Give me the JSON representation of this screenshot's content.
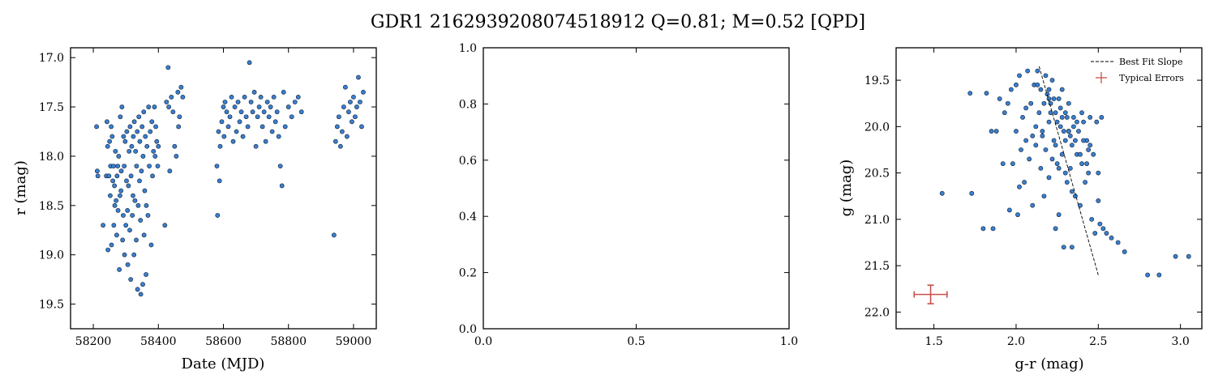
{
  "figure": {
    "title": "GDR1 2162939208074518912  Q=0.81; M=0.52 [QPD]"
  },
  "colors": {
    "point_fill": "#3a7fcf",
    "point_edge": "#0f1e33",
    "errorbar": "#c8504b",
    "fit_line": "#000000"
  },
  "chart_data": [
    {
      "type": "scatter",
      "name": "lightcurve",
      "xlabel": "Date (MJD)",
      "ylabel": "r (mag)",
      "xlim": [
        58130,
        59070
      ],
      "ylim": [
        19.75,
        16.9
      ],
      "y_inverted": true,
      "xticks": [
        58200,
        58400,
        58600,
        58800,
        59000
      ],
      "xtick_labels": [
        "58200",
        "58400",
        "58600",
        "58800",
        "59000"
      ],
      "yticks": [
        17.0,
        17.5,
        18.0,
        18.5,
        19.0,
        19.5
      ],
      "ytick_labels": [
        "17.0",
        "17.5",
        "18.0",
        "18.5",
        "19.0",
        "19.5"
      ],
      "x": [
        58210,
        58212,
        58214,
        58230,
        58240,
        58242,
        58244,
        58245,
        58248,
        58250,
        58252,
        58253,
        58255,
        58256,
        58258,
        58260,
        58262,
        58263,
        58265,
        58266,
        58268,
        58270,
        58272,
        58273,
        58275,
        58276,
        58278,
        58280,
        58282,
        58283,
        58285,
        58286,
        58288,
        58290,
        58292,
        58293,
        58295,
        58296,
        58298,
        58300,
        58302,
        58303,
        58305,
        58306,
        58308,
        58310,
        58312,
        58313,
        58315,
        58316,
        58318,
        58320,
        58322,
        58323,
        58325,
        58326,
        58328,
        58330,
        58332,
        58333,
        58335,
        58336,
        58338,
        58340,
        58342,
        58343,
        58345,
        58346,
        58348,
        58350,
        58352,
        58353,
        58355,
        58356,
        58358,
        58360,
        58362,
        58363,
        58365,
        58368,
        58370,
        58372,
        58375,
        58378,
        58380,
        58382,
        58385,
        58388,
        58390,
        58392,
        58395,
        58398,
        58400,
        58420,
        58425,
        58430,
        58432,
        58435,
        58440,
        58445,
        58450,
        58455,
        58460,
        58462,
        58465,
        58470,
        58475,
        58580,
        58582,
        58585,
        58588,
        58590,
        58595,
        58600,
        58602,
        58605,
        58610,
        58615,
        58620,
        58625,
        58630,
        58635,
        58640,
        58645,
        58650,
        58655,
        58660,
        58665,
        58670,
        58675,
        58680,
        58685,
        58690,
        58695,
        58700,
        58705,
        58710,
        58715,
        58720,
        58725,
        58730,
        58735,
        58740,
        58745,
        58750,
        58755,
        58760,
        58765,
        58770,
        58775,
        58780,
        58785,
        58790,
        58800,
        58810,
        58820,
        58830,
        58840,
        58940,
        58945,
        58950,
        58955,
        58960,
        58965,
        58970,
        58975,
        58980,
        58985,
        58990,
        58995,
        59000,
        59005,
        59010,
        59015,
        59020,
        59025,
        59030
      ],
      "y": [
        17.7,
        18.15,
        18.2,
        18.7,
        18.2,
        17.65,
        17.9,
        18.95,
        18.2,
        17.85,
        18.4,
        18.1,
        17.7,
        18.9,
        17.8,
        18.25,
        18.1,
        18.7,
        18.3,
        18.5,
        17.95,
        18.45,
        18.8,
        18.2,
        18.1,
        18.55,
        18.0,
        19.15,
        18.4,
        17.6,
        18.35,
        18.15,
        17.5,
        18.85,
        18.6,
        17.8,
        18.1,
        19.0,
        17.85,
        18.7,
        18.25,
        17.75,
        18.55,
        19.1,
        18.3,
        17.95,
        18.75,
        17.7,
        19.25,
        18.2,
        17.9,
        18.6,
        18.4,
        17.8,
        19.0,
        17.65,
        18.45,
        17.95,
        18.85,
        18.1,
        17.75,
        19.35,
        18.5,
        17.6,
        18.25,
        17.85,
        18.65,
        19.4,
        18.15,
        17.7,
        19.3,
        18.0,
        17.55,
        18.8,
        18.35,
        17.8,
        19.2,
        18.5,
        17.9,
        18.6,
        17.5,
        18.1,
        17.75,
        18.9,
        17.65,
        18.2,
        17.95,
        17.5,
        18.0,
        17.7,
        17.85,
        18.1,
        17.9,
        18.7,
        17.45,
        17.1,
        17.5,
        18.15,
        17.4,
        17.55,
        17.9,
        18.0,
        17.35,
        17.7,
        17.6,
        17.3,
        17.4,
        18.1,
        18.6,
        17.75,
        18.25,
        17.9,
        17.65,
        17.5,
        17.8,
        17.45,
        17.55,
        17.7,
        17.6,
        17.4,
        17.85,
        17.5,
        17.75,
        17.45,
        17.65,
        17.55,
        17.8,
        17.4,
        17.6,
        17.7,
        17.05,
        17.45,
        17.55,
        17.35,
        17.9,
        17.6,
        17.5,
        17.4,
        17.7,
        17.55,
        17.85,
        17.45,
        17.6,
        17.5,
        17.75,
        17.4,
        17.65,
        17.55,
        17.8,
        18.1,
        18.3,
        17.35,
        17.7,
        17.5,
        17.6,
        17.45,
        17.4,
        17.55,
        18.8,
        17.85,
        17.7,
        17.6,
        17.9,
        17.75,
        17.5,
        17.3,
        17.8,
        17.55,
        17.45,
        17.65,
        17.4,
        17.6,
        17.5,
        17.2,
        17.45,
        17.7,
        17.35
      ]
    },
    {
      "type": "scatter",
      "name": "empty-panel",
      "xlim": [
        0.0,
        1.0
      ],
      "ylim": [
        0.0,
        1.0
      ],
      "xticks": [
        0.0,
        0.5,
        1.0
      ],
      "xtick_labels": [
        "0.0",
        "0.5",
        "1.0"
      ],
      "yticks": [
        0.0,
        0.2,
        0.4,
        0.6,
        0.8,
        1.0
      ],
      "ytick_labels": [
        "0.0",
        "0.2",
        "0.4",
        "0.6",
        "0.8",
        "1.0"
      ]
    },
    {
      "type": "scatter",
      "name": "color-magnitude",
      "xlabel": "g-r (mag)",
      "ylabel": "g (mag)",
      "xlim": [
        1.27,
        3.13
      ],
      "ylim": [
        22.18,
        19.15
      ],
      "y_inverted": true,
      "xticks": [
        1.5,
        2.0,
        2.5,
        3.0
      ],
      "xtick_labels": [
        "1.5",
        "2.0",
        "2.5",
        "3.0"
      ],
      "yticks": [
        19.5,
        20.0,
        20.5,
        21.0,
        21.5,
        22.0
      ],
      "ytick_labels": [
        "19.5",
        "20.0",
        "20.5",
        "21.0",
        "21.5",
        "22.0"
      ],
      "legend": {
        "placement": "top-right",
        "entries": [
          "Best Fit Slope",
          "Typical Errors"
        ]
      },
      "fit_line": {
        "x": [
          2.14,
          2.5
        ],
        "y": [
          19.35,
          21.6
        ]
      },
      "typical_error": {
        "x": 1.48,
        "y": 21.81,
        "xerr": 0.1,
        "yerr": 0.1
      },
      "x": [
        1.55,
        1.72,
        1.73,
        1.8,
        1.82,
        1.85,
        1.86,
        1.88,
        1.9,
        1.92,
        1.93,
        1.95,
        1.96,
        1.97,
        1.98,
        2.0,
        2.0,
        2.01,
        2.02,
        2.03,
        2.04,
        2.05,
        2.06,
        2.07,
        2.08,
        2.09,
        2.1,
        2.1,
        2.11,
        2.12,
        2.13,
        2.14,
        2.15,
        2.15,
        2.16,
        2.17,
        2.18,
        2.18,
        2.19,
        2.2,
        2.2,
        2.21,
        2.22,
        2.22,
        2.23,
        2.24,
        2.24,
        2.25,
        2.26,
        2.26,
        2.27,
        2.28,
        2.28,
        2.29,
        2.3,
        2.3,
        2.31,
        2.32,
        2.32,
        2.33,
        2.34,
        2.34,
        2.35,
        2.36,
        2.37,
        2.38,
        2.39,
        2.4,
        2.41,
        2.42,
        2.43,
        2.44,
        2.45,
        2.46,
        2.47,
        2.48,
        2.5,
        2.5,
        2.51,
        2.52,
        2.53,
        2.55,
        2.58,
        2.62,
        2.66,
        2.8,
        2.87,
        2.97,
        3.05,
        2.02,
        2.06,
        2.12,
        2.16,
        2.2,
        2.24,
        2.28,
        2.32,
        2.36,
        2.4,
        2.44,
        2.13,
        2.17,
        2.21,
        2.25,
        2.29,
        2.33,
        2.37,
        2.41,
        2.45,
        2.49,
        2.2,
        2.23,
        2.27,
        2.31,
        2.35,
        2.39,
        2.43,
        2.26,
        2.3,
        2.34
      ],
      "y": [
        20.72,
        19.64,
        20.72,
        21.1,
        19.64,
        20.05,
        21.1,
        20.05,
        19.7,
        20.4,
        19.85,
        19.75,
        20.9,
        19.6,
        20.4,
        19.55,
        20.05,
        20.95,
        19.45,
        20.25,
        19.9,
        20.6,
        20.15,
        19.4,
        20.35,
        19.75,
        20.85,
        20.1,
        19.55,
        20.2,
        19.4,
        19.85,
        20.45,
        19.6,
        20.05,
        20.75,
        19.45,
        20.25,
        19.65,
        19.95,
        20.55,
        19.75,
        20.35,
        19.5,
        20.15,
        21.1,
        19.85,
        20.4,
        19.7,
        20.95,
        20.0,
        20.3,
        19.6,
        21.3,
        20.15,
        19.85,
        20.6,
        20.05,
        19.75,
        20.45,
        21.3,
        20.2,
        19.9,
        20.75,
        20.3,
        20.05,
        20.85,
        20.4,
        19.95,
        20.6,
        20.15,
        20.5,
        19.9,
        21.0,
        20.3,
        21.15,
        20.8,
        20.5,
        21.05,
        19.9,
        21.1,
        21.15,
        21.2,
        21.25,
        21.35,
        21.6,
        21.6,
        21.4,
        21.4,
        20.65,
        19.8,
        20.0,
        20.1,
        19.7,
        20.2,
        19.9,
        20.05,
        20.15,
        19.85,
        20.25,
        19.55,
        19.75,
        19.85,
        19.95,
        20.05,
        20.1,
        19.95,
        20.15,
        20.2,
        19.95,
        19.6,
        19.7,
        19.8,
        19.9,
        20.0,
        20.3,
        20.4,
        20.45,
        20.5,
        20.7
      ]
    }
  ]
}
